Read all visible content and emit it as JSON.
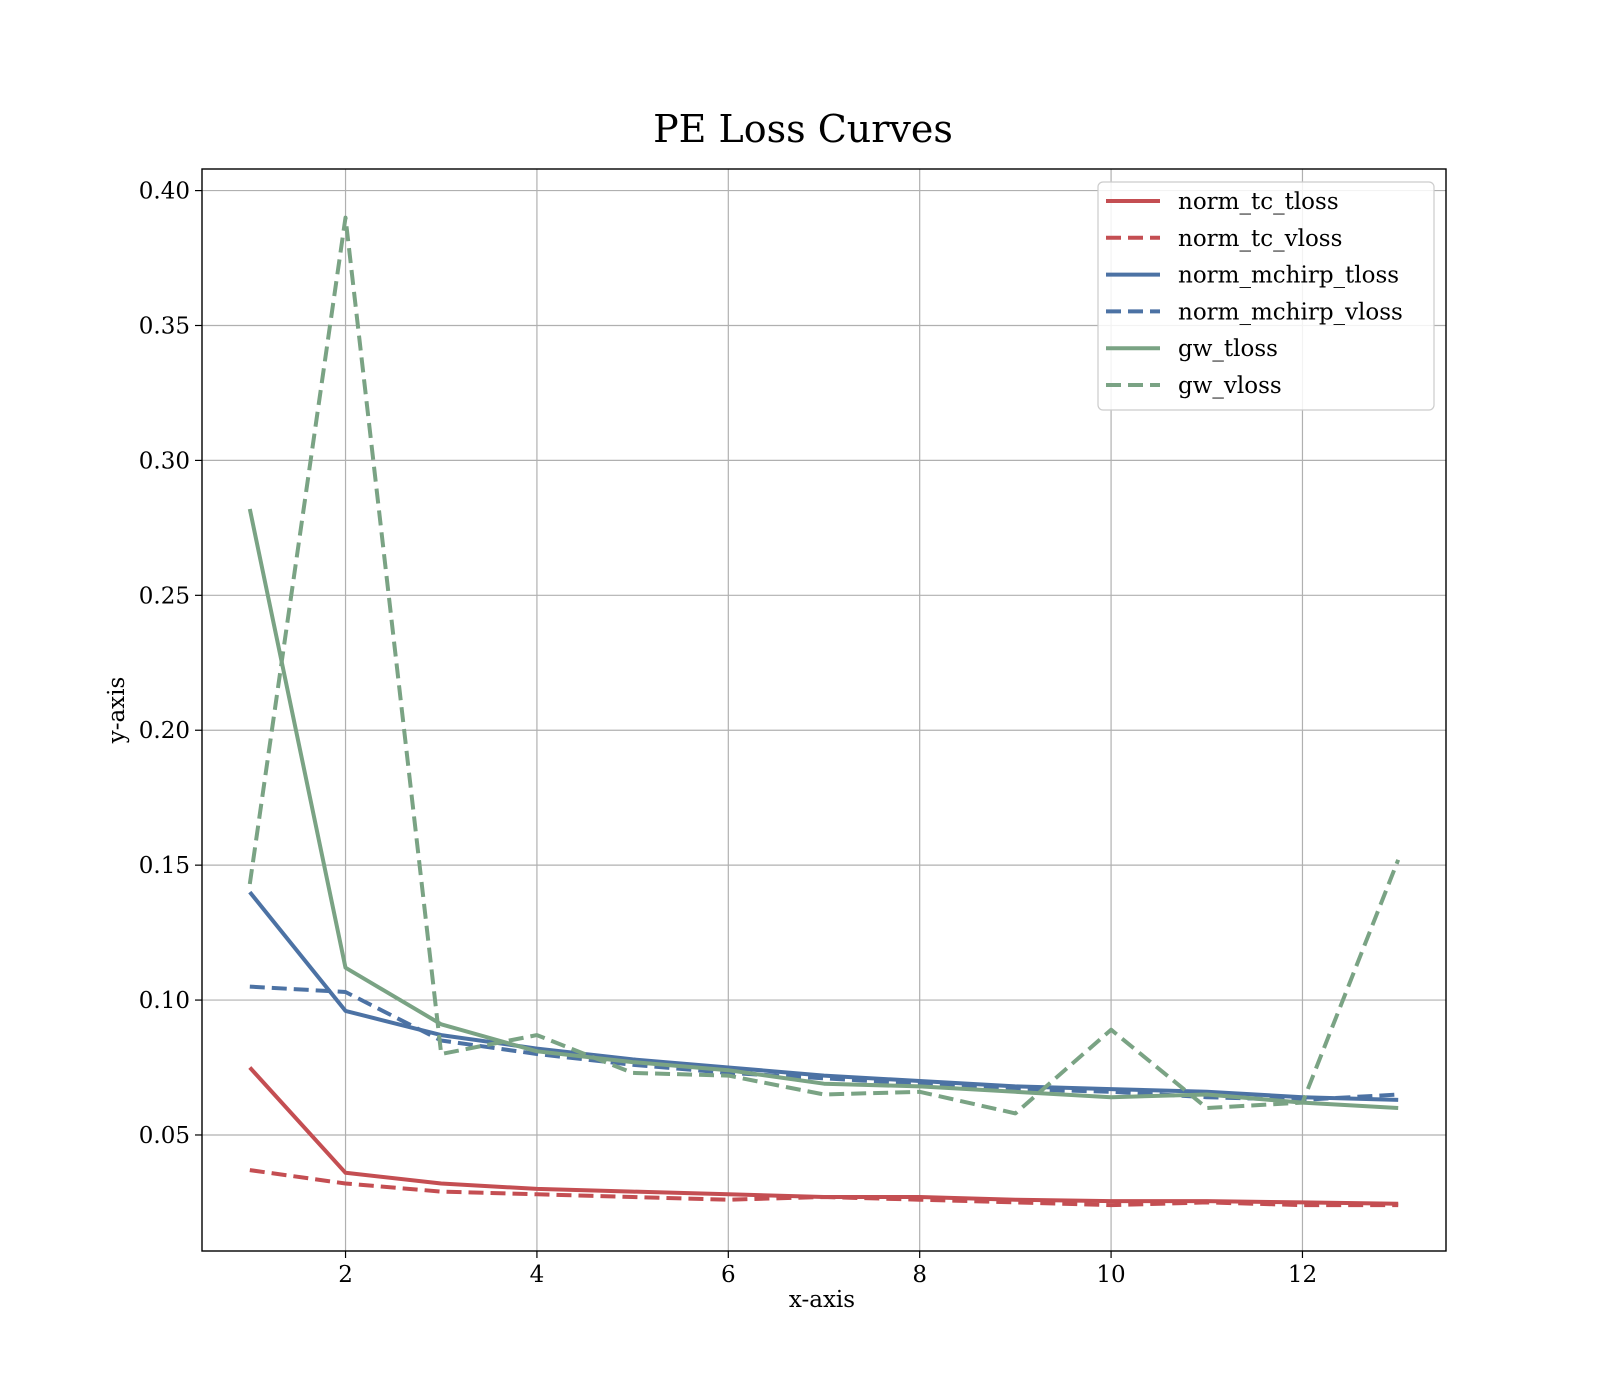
{
  "chart_data": {
    "type": "line",
    "title": "PE Loss Curves",
    "xlabel": "x-axis",
    "ylabel": "y-axis",
    "xlim": [
      0.5,
      13.5
    ],
    "ylim": [
      0.007,
      0.408
    ],
    "xticks": [
      2,
      4,
      6,
      8,
      10,
      12
    ],
    "yticks": [
      0.05,
      0.1,
      0.15,
      0.2,
      0.25,
      0.3,
      0.35,
      0.4
    ],
    "ytick_labels": [
      "0.05",
      "0.10",
      "0.15",
      "0.20",
      "0.25",
      "0.30",
      "0.35",
      "0.40"
    ],
    "grid": true,
    "legend_position": "top-right",
    "x": [
      1,
      2,
      3,
      4,
      5,
      6,
      7,
      8,
      9,
      10,
      11,
      12,
      13
    ],
    "series": [
      {
        "name": "norm_tc_tloss",
        "color": "#c44e52",
        "dash": "solid",
        "values": [
          0.075,
          0.036,
          0.032,
          0.03,
          0.029,
          0.028,
          0.027,
          0.027,
          0.026,
          0.0255,
          0.0255,
          0.025,
          0.0245
        ]
      },
      {
        "name": "norm_tc_vloss",
        "color": "#c44e52",
        "dash": "dashed",
        "values": [
          0.037,
          0.032,
          0.029,
          0.028,
          0.027,
          0.026,
          0.027,
          0.026,
          0.025,
          0.024,
          0.025,
          0.024,
          0.024
        ]
      },
      {
        "name": "norm_mchirp_tloss",
        "color": "#4c72a4",
        "dash": "solid",
        "values": [
          0.14,
          0.096,
          0.087,
          0.082,
          0.078,
          0.075,
          0.072,
          0.07,
          0.068,
          0.067,
          0.066,
          0.064,
          0.063
        ]
      },
      {
        "name": "norm_mchirp_vloss",
        "color": "#4c72a4",
        "dash": "dashed",
        "values": [
          0.105,
          0.103,
          0.085,
          0.08,
          0.076,
          0.073,
          0.071,
          0.069,
          0.067,
          0.066,
          0.064,
          0.063,
          0.065
        ]
      },
      {
        "name": "gw_tloss",
        "color": "#7aa384",
        "dash": "solid",
        "values": [
          0.282,
          0.112,
          0.091,
          0.081,
          0.077,
          0.074,
          0.069,
          0.068,
          0.066,
          0.064,
          0.065,
          0.062,
          0.06
        ]
      },
      {
        "name": "gw_vloss",
        "color": "#7aa384",
        "dash": "dashed",
        "values": [
          0.143,
          0.39,
          0.08,
          0.087,
          0.073,
          0.072,
          0.065,
          0.066,
          0.058,
          0.089,
          0.06,
          0.062,
          0.152
        ]
      }
    ]
  }
}
